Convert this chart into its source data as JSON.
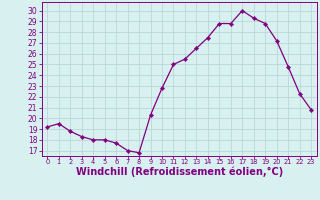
{
  "x": [
    0,
    1,
    2,
    3,
    4,
    5,
    6,
    7,
    8,
    9,
    10,
    11,
    12,
    13,
    14,
    15,
    16,
    17,
    18,
    19,
    20,
    21,
    22,
    23
  ],
  "y": [
    19.2,
    19.5,
    18.8,
    18.3,
    18.0,
    18.0,
    17.7,
    17.0,
    16.8,
    20.3,
    22.8,
    25.0,
    25.5,
    26.5,
    27.5,
    28.8,
    28.8,
    30.0,
    29.3,
    28.8,
    27.2,
    24.8,
    22.3,
    20.8
  ],
  "line_color": "#800080",
  "marker": "D",
  "marker_size": 2.2,
  "bg_color": "#d8f0f0",
  "grid_color": "#b8d8d8",
  "tick_color": "#800080",
  "xlabel": "Windchill (Refroidissement éolien,°C)",
  "xlabel_fontsize": 7,
  "yticks": [
    17,
    18,
    19,
    20,
    21,
    22,
    23,
    24,
    25,
    26,
    27,
    28,
    29,
    30
  ],
  "ylim": [
    16.5,
    30.8
  ],
  "xlim": [
    -0.5,
    23.5
  ]
}
